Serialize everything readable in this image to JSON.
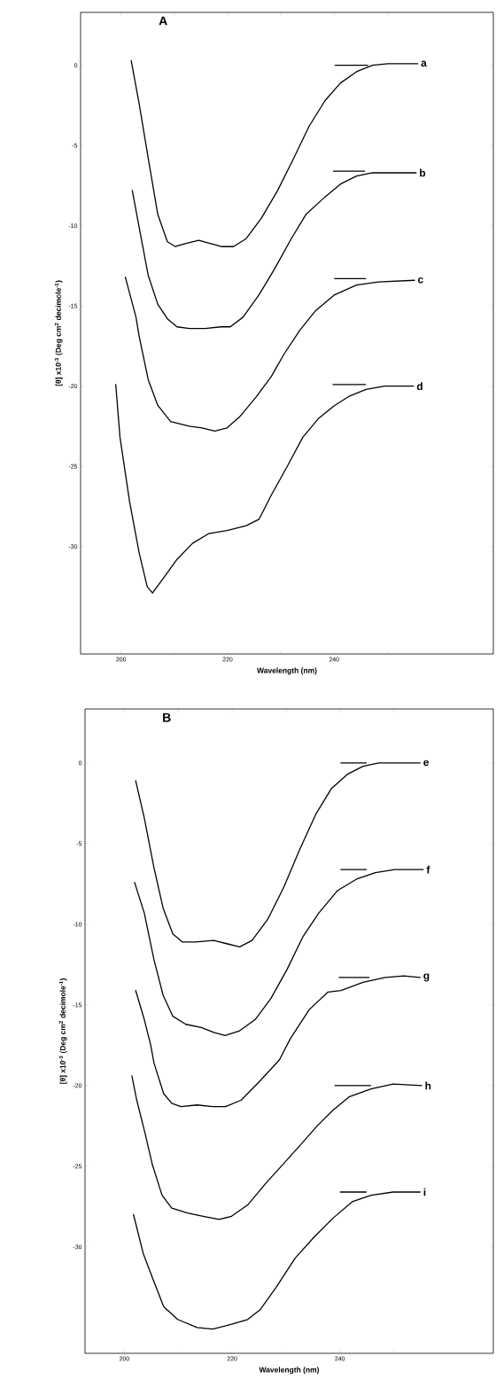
{
  "chart_data": [
    {
      "type": "line",
      "title": "A",
      "xlabel": "Wavelength (nm)",
      "ylabel": "[θ] x10$^{-3}$ (Deg cm$^{2}$ decimole$^{-1}$)",
      "xlim": [
        192.4,
        269.9
      ],
      "ylim": [
        -36.7,
        3.3
      ],
      "xticks": [
        200,
        {
          "value": 210,
          "label": null
        },
        220,
        {
          "value": 230,
          "label": null
        },
        240,
        {
          "value": 250,
          "label": null
        }
      ],
      "yticks": [
        0,
        -5,
        -10,
        -15,
        -20,
        -25,
        -30
      ],
      "series": [
        {
          "name": "a",
          "color": "#000000",
          "x": [
            201.9,
            203.4,
            205.1,
            206.9,
            208.7,
            210.2,
            212.2,
            214.6,
            216.7,
            218.8,
            221.1,
            223.5,
            226.4,
            229.4,
            232.4,
            235.3,
            238.3,
            241.2,
            244.2,
            247.2,
            250.1,
            255.7
          ],
          "values": [
            0.3,
            -2.4,
            -5.8,
            -9.3,
            -11.0,
            -11.3,
            -11.1,
            -10.9,
            -11.1,
            -11.3,
            -11.3,
            -10.8,
            -9.5,
            -7.8,
            -5.8,
            -3.8,
            -2.2,
            -1.1,
            -0.4,
            0.0,
            0.1,
            0.1
          ]
        },
        {
          "name": "b",
          "color": "#000000",
          "x": [
            202.1,
            203.4,
            205.1,
            206.9,
            208.7,
            210.5,
            212.8,
            215.8,
            218.8,
            220.5,
            222.9,
            225.9,
            228.8,
            231.8,
            234.7,
            238.3,
            241.2,
            244.2,
            247.2,
            255.4
          ],
          "values": [
            -7.8,
            -10.1,
            -13.1,
            -14.9,
            -15.8,
            -16.3,
            -16.4,
            -16.4,
            -16.3,
            -16.3,
            -15.7,
            -14.3,
            -12.7,
            -10.9,
            -9.3,
            -8.2,
            -7.4,
            -6.9,
            -6.7,
            -6.7
          ]
        },
        {
          "name": "c",
          "color": "#000000",
          "x": [
            200.8,
            202.8,
            203.4,
            205.1,
            206.9,
            209.3,
            212.8,
            215.2,
            217.6,
            219.9,
            222.3,
            225.3,
            228.2,
            230.6,
            233.6,
            236.5,
            240.1,
            244.2,
            248.3,
            255.1
          ],
          "values": [
            -13.2,
            -15.7,
            -16.9,
            -19.6,
            -21.2,
            -22.2,
            -22.5,
            -22.6,
            -22.8,
            -22.6,
            -21.9,
            -20.7,
            -19.4,
            -18.0,
            -16.5,
            -15.3,
            -14.3,
            -13.7,
            -13.5,
            -13.4
          ]
        },
        {
          "name": "d",
          "color": "#000000",
          "x": [
            199.0,
            199.8,
            201.6,
            203.4,
            204.9,
            205.9,
            208.1,
            210.5,
            213.4,
            216.4,
            219.9,
            223.5,
            225.9,
            228.2,
            231.2,
            234.1,
            237.1,
            240.1,
            243.0,
            246.0,
            249.5,
            254.9
          ],
          "values": [
            -19.9,
            -23.2,
            -27.2,
            -30.4,
            -32.5,
            -32.9,
            -31.9,
            -30.8,
            -29.8,
            -29.2,
            -29.0,
            -28.7,
            -28.3,
            -26.8,
            -25.0,
            -23.2,
            -22.0,
            -21.2,
            -20.6,
            -20.2,
            -20.0,
            -20.0
          ]
        },
        {
          "color": "#000000",
          "x": [
            240.2,
            246.3
          ],
          "values": [
            0,
            0
          ]
        },
        {
          "color": "#000000",
          "x": [
            239.9,
            245.7
          ],
          "values": [
            -6.6,
            -6.6
          ]
        },
        {
          "color": "#000000",
          "x": [
            240.1,
            245.9
          ],
          "values": [
            -13.3,
            -13.3
          ]
        },
        {
          "color": "#000000",
          "x": [
            239.8,
            245.9
          ],
          "values": [
            -19.9,
            -19.9
          ]
        }
      ]
    },
    {
      "type": "line",
      "title": "B",
      "xlabel": "Wavelength (nm)",
      "ylabel": "[θ] x10$^{-3}$ (Deg cm$^{2}$ decimole$^{-1}$)",
      "xlim": [
        192.7,
        268.5
      ],
      "ylim": [
        -36.6,
        3.35
      ],
      "xticks": [
        200,
        {
          "value": 210,
          "label": null
        },
        220,
        {
          "value": 230,
          "label": null
        },
        240,
        {
          "value": 250,
          "label": null
        }
      ],
      "yticks": [
        0,
        -5,
        -10,
        -15,
        -20,
        -25,
        -30
      ],
      "series": [
        {
          "name": "e",
          "color": "#000000",
          "x": [
            202.1,
            203.7,
            205.5,
            207.2,
            209.0,
            210.8,
            213.1,
            216.6,
            219.0,
            221.4,
            223.7,
            226.6,
            229.6,
            232.5,
            235.5,
            238.4,
            241.4,
            244.3,
            247.2,
            254.9
          ],
          "values": [
            -1.1,
            -3.4,
            -6.5,
            -9.0,
            -10.6,
            -11.1,
            -11.1,
            -11.0,
            -11.2,
            -11.4,
            -11.0,
            -9.7,
            -7.7,
            -5.4,
            -3.2,
            -1.6,
            -0.7,
            -0.2,
            0.0,
            0.0
          ]
        },
        {
          "name": "f",
          "color": "#000000",
          "x": [
            201.9,
            203.7,
            205.5,
            207.2,
            209.0,
            211.4,
            214.3,
            216.6,
            218.7,
            221.4,
            224.3,
            227.2,
            230.2,
            233.1,
            236.1,
            239.6,
            243.1,
            246.6,
            250.2,
            255.5
          ],
          "values": [
            -7.4,
            -9.3,
            -12.2,
            -14.4,
            -15.7,
            -16.2,
            -16.4,
            -16.7,
            -16.9,
            -16.6,
            -15.9,
            -14.6,
            -12.8,
            -10.8,
            -9.3,
            -7.9,
            -7.2,
            -6.8,
            -6.6,
            -6.6
          ]
        },
        {
          "name": "g",
          "color": "#000000",
          "x": [
            202.1,
            203.7,
            204.9,
            205.5,
            207.3,
            208.8,
            210.5,
            213.5,
            216.4,
            218.8,
            221.7,
            225.2,
            228.8,
            230.8,
            234.3,
            237.8,
            240.2,
            244.3,
            248.4,
            251.9,
            254.9
          ],
          "values": [
            -14.1,
            -15.9,
            -17.5,
            -18.6,
            -20.5,
            -21.1,
            -21.3,
            -21.2,
            -21.3,
            -21.3,
            -20.9,
            -19.7,
            -18.4,
            -17.1,
            -15.3,
            -14.2,
            -14.1,
            -13.6,
            -13.3,
            -13.2,
            -13.3
          ]
        },
        {
          "name": "h",
          "color": "#000000",
          "x": [
            201.4,
            202.3,
            203.8,
            205.2,
            207.0,
            208.8,
            211.7,
            214.6,
            217.6,
            219.9,
            222.9,
            226.4,
            229.4,
            232.9,
            235.8,
            238.8,
            241.7,
            245.8,
            249.9,
            255.2
          ],
          "values": [
            -19.4,
            -20.9,
            -22.9,
            -24.9,
            -26.8,
            -27.6,
            -27.9,
            -28.1,
            -28.3,
            -28.1,
            -27.4,
            -26.0,
            -24.9,
            -23.6,
            -22.5,
            -21.5,
            -20.7,
            -20.2,
            -19.9,
            -20.0
          ]
        },
        {
          "name": "i",
          "color": "#000000",
          "x": [
            201.7,
            203.5,
            205.2,
            207.3,
            209.9,
            213.5,
            216.4,
            219.9,
            222.9,
            225.2,
            228.2,
            231.7,
            235.2,
            238.8,
            242.3,
            245.8,
            249.9,
            254.9
          ],
          "values": [
            -28.0,
            -30.4,
            -31.9,
            -33.7,
            -34.5,
            -35.0,
            -35.1,
            -34.8,
            -34.5,
            -33.9,
            -32.5,
            -30.7,
            -29.4,
            -28.2,
            -27.2,
            -26.8,
            -26.6,
            -26.6
          ]
        },
        {
          "color": "#000000",
          "x": [
            240.2,
            244.9
          ],
          "values": [
            0,
            0
          ]
        },
        {
          "color": "#000000",
          "x": [
            240.2,
            244.9
          ],
          "values": [
            -6.6,
            -6.6
          ]
        },
        {
          "color": "#000000",
          "x": [
            239.9,
            245.4
          ],
          "values": [
            -13.3,
            -13.3
          ]
        },
        {
          "color": "#000000",
          "x": [
            239.1,
            245.7
          ],
          "values": [
            -20.0,
            -20.0
          ]
        },
        {
          "color": "#000000",
          "x": [
            240.1,
            244.9
          ],
          "values": [
            -26.6,
            -26.6
          ]
        }
      ]
    }
  ]
}
